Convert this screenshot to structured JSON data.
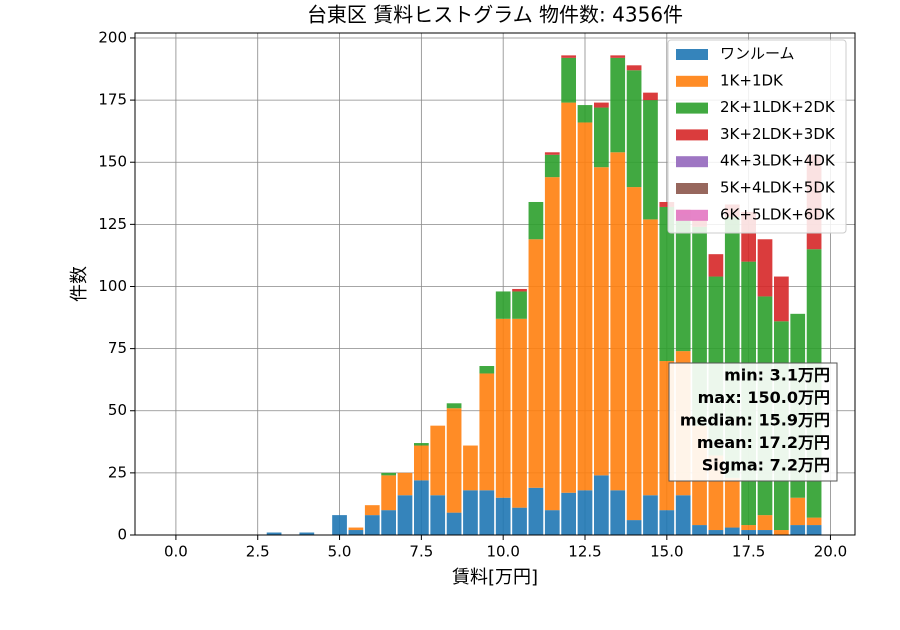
{
  "chart_data": {
    "type": "histogram",
    "stacked": true,
    "title": "台東区 賃料ヒストグラム 物件数: 4356件",
    "x_label": "賃料[万円]",
    "y_label": "件数",
    "bins": [
      -0.25,
      0.25,
      0.75,
      1.25,
      1.75,
      2.25,
      2.75,
      3.25,
      3.75,
      4.25,
      4.75,
      5.25,
      5.75,
      6.25,
      6.75,
      7.25,
      7.75,
      8.25,
      8.75,
      9.25,
      9.75,
      10.25,
      10.75,
      11.25,
      11.75,
      12.25,
      12.75,
      13.25,
      13.75,
      14.25,
      14.75,
      15.25,
      15.75,
      16.25,
      16.75,
      17.25,
      17.75,
      18.25,
      18.75,
      19.25,
      19.75
    ],
    "series": [
      {
        "name": "ワンルーム",
        "color": "#1f77b4",
        "values": [
          0,
          0,
          0,
          0,
          0,
          0,
          1,
          0,
          1,
          0,
          8,
          2,
          8,
          10,
          16,
          22,
          16,
          9,
          18,
          18,
          15,
          11,
          19,
          10,
          17,
          18,
          24,
          18,
          6,
          16,
          10,
          16,
          4,
          2,
          3,
          2,
          2,
          0,
          4,
          4
        ]
      },
      {
        "name": "1K+1DK",
        "color": "#ff7f0e",
        "values": [
          0,
          0,
          0,
          0,
          0,
          0,
          0,
          0,
          0,
          0,
          0,
          1,
          4,
          14,
          9,
          14,
          28,
          42,
          18,
          47,
          72,
          76,
          100,
          134,
          157,
          148,
          124,
          136,
          134,
          111,
          60,
          58,
          40,
          30,
          20,
          2,
          6,
          2,
          11,
          3
        ]
      },
      {
        "name": "2K+1LDK+2DK",
        "color": "#2ca02c",
        "values": [
          0,
          0,
          0,
          0,
          0,
          0,
          0,
          0,
          0,
          0,
          0,
          0,
          0,
          1,
          0,
          1,
          0,
          2,
          0,
          3,
          11,
          11,
          15,
          9,
          18,
          7,
          24,
          38,
          47,
          48,
          62,
          55,
          80,
          72,
          105,
          106,
          88,
          84,
          74,
          108
        ]
      },
      {
        "name": "3K+2LDK+3DK",
        "color": "#d62728",
        "values": [
          0,
          0,
          0,
          0,
          0,
          0,
          0,
          0,
          0,
          0,
          0,
          0,
          0,
          0,
          0,
          0,
          0,
          0,
          0,
          0,
          0,
          1,
          0,
          1,
          1,
          0,
          2,
          1,
          2,
          3,
          2,
          2,
          3,
          9,
          5,
          20,
          23,
          18,
          0,
          38
        ]
      },
      {
        "name": "4K+3LDK+4DK",
        "color": "#9467bd",
        "values": [
          0,
          0,
          0,
          0,
          0,
          0,
          0,
          0,
          0,
          0,
          0,
          0,
          0,
          0,
          0,
          0,
          0,
          0,
          0,
          0,
          0,
          0,
          0,
          0,
          0,
          0,
          0,
          0,
          0,
          0,
          0,
          0,
          0,
          0,
          0,
          0,
          0,
          0,
          0,
          0
        ]
      },
      {
        "name": "5K+4LDK+5DK",
        "color": "#8c564b",
        "values": [
          0,
          0,
          0,
          0,
          0,
          0,
          0,
          0,
          0,
          0,
          0,
          0,
          0,
          0,
          0,
          0,
          0,
          0,
          0,
          0,
          0,
          0,
          0,
          0,
          0,
          0,
          0,
          0,
          0,
          0,
          0,
          0,
          0,
          0,
          0,
          0,
          0,
          0,
          0,
          0
        ]
      },
      {
        "name": "6K+5LDK+6DK",
        "color": "#e377c2",
        "values": [
          0,
          0,
          0,
          0,
          0,
          0,
          0,
          0,
          0,
          0,
          0,
          0,
          0,
          0,
          0,
          0,
          0,
          0,
          0,
          0,
          0,
          0,
          0,
          0,
          0,
          0,
          0,
          0,
          0,
          0,
          0,
          0,
          0,
          0,
          0,
          0,
          0,
          0,
          0,
          0
        ]
      }
    ],
    "xlim": [
      -1.25,
      20.75
    ],
    "xticks": [
      {
        "value": 0,
        "label": "0.0"
      },
      {
        "value": 2.5,
        "label": "2.5"
      },
      {
        "value": 5,
        "label": "5.0"
      },
      {
        "value": 7.5,
        "label": "7.5"
      },
      {
        "value": 10,
        "label": "10.0"
      },
      {
        "value": 12.5,
        "label": "12.5"
      },
      {
        "value": 15,
        "label": "15.0"
      },
      {
        "value": 17.5,
        "label": "17.5"
      },
      {
        "value": 20,
        "label": "20.0"
      }
    ],
    "ylim": [
      0,
      202
    ],
    "yticks": [
      0,
      25,
      50,
      75,
      100,
      125,
      150,
      175,
      200
    ],
    "grid": true,
    "legend": "upper right",
    "annotations": [
      "min: 3.1万円",
      "max: 150.0万円",
      "median: 15.9万円",
      "mean: 17.2万円",
      "Sigma: 7.2万円"
    ]
  }
}
